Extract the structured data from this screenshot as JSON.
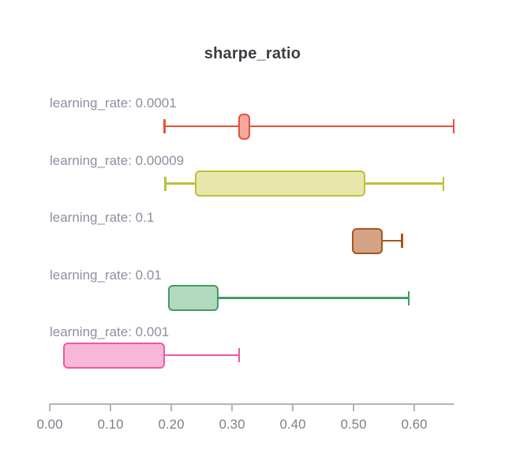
{
  "title": "sharpe_ratio",
  "colors": {
    "background": "#ffffff",
    "title_text": "#3a3d42",
    "label_text": "#8b90a0",
    "tick_text": "#7c8089",
    "axis_line": "#b4b4b4"
  },
  "chart_data": {
    "type": "boxplot",
    "orientation": "horizontal",
    "title": "sharpe_ratio",
    "xlabel": "",
    "ylabel": "",
    "xlim": [
      0,
      0.665
    ],
    "grid": false,
    "legend_position": "none",
    "x_ticks": [
      0.0,
      0.1,
      0.2,
      0.3,
      0.4,
      0.5,
      0.6
    ],
    "x_tick_labels": [
      "0.00",
      "0.10",
      "0.20",
      "0.30",
      "0.40",
      "0.50",
      "0.60"
    ],
    "series": [
      {
        "label": "learning_rate: 0.0001",
        "min": 0.189,
        "q1": 0.31,
        "q3": 0.33,
        "max": 0.665,
        "color": "#e8503a",
        "fill": "#f5a99d"
      },
      {
        "label": "learning_rate: 0.00009",
        "min": 0.19,
        "q1": 0.239,
        "q3": 0.52,
        "max": 0.648,
        "color": "#bcc135",
        "fill": "#e9e6ab"
      },
      {
        "label": "learning_rate: 0.1",
        "min": 0.498,
        "q1": 0.498,
        "q3": 0.548,
        "max": 0.58,
        "color": "#a8551e",
        "fill": "#d4a285"
      },
      {
        "label": "learning_rate: 0.01",
        "min": 0.195,
        "q1": 0.195,
        "q3": 0.278,
        "max": 0.591,
        "color": "#3f9e5f",
        "fill": "#b3d9be"
      },
      {
        "label": "learning_rate: 0.001",
        "min": 0.022,
        "q1": 0.022,
        "q3": 0.189,
        "max": 0.312,
        "color": "#ee57a4",
        "fill": "#f9b7d8"
      }
    ]
  }
}
